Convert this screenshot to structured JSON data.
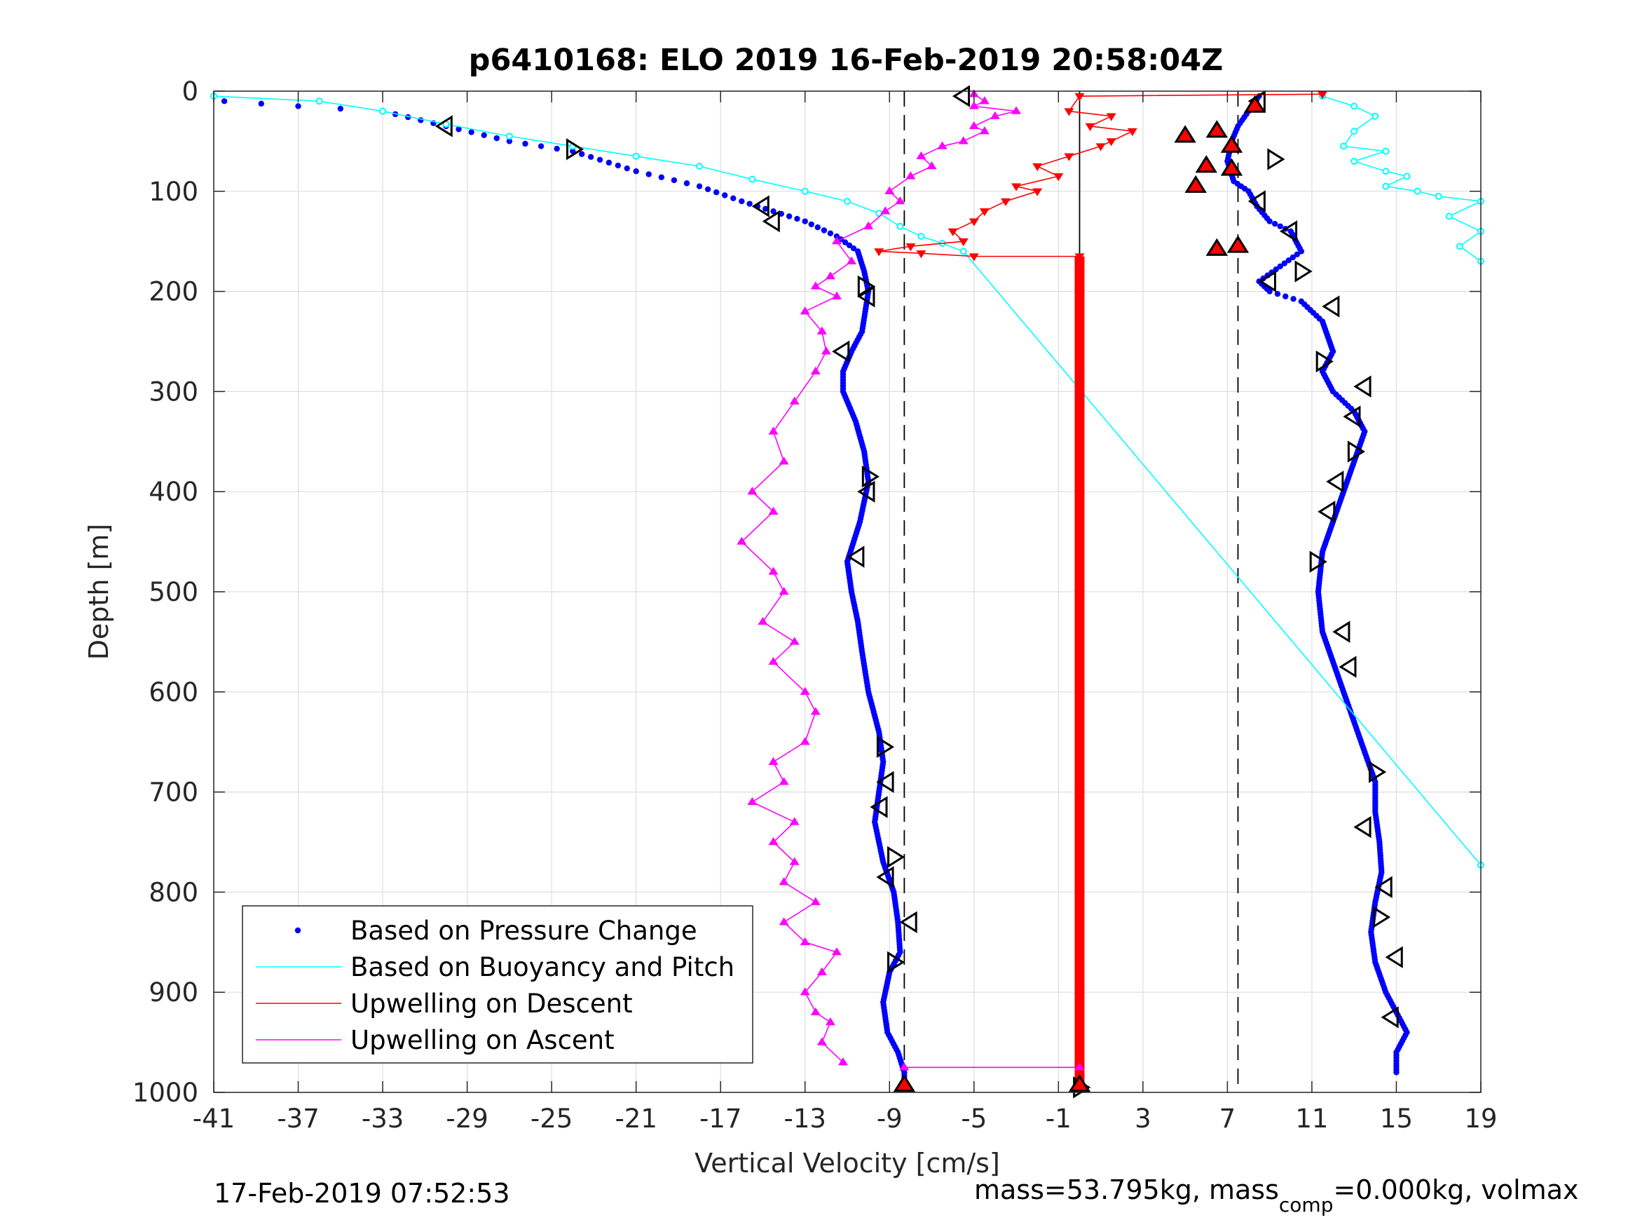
{
  "chart_data": {
    "type": "scatter",
    "title": "p6410168: ELO 2019 16-Feb-2019 20:58:04Z",
    "xlabel": "Vertical Velocity [cm/s]",
    "ylabel": "Depth [m]",
    "xlim": [
      -41,
      19
    ],
    "ylim": [
      0,
      1000
    ],
    "y_reversed": true,
    "grid": true,
    "legend_position": "bottom-left",
    "x_ticks": [
      "-41",
      "-37",
      "-33",
      "-29",
      "-25",
      "-21",
      "-17",
      "-13",
      "-9",
      "-5",
      "-1",
      "3",
      "7",
      "11",
      "15",
      "19"
    ],
    "y_ticks": [
      "0",
      "100",
      "200",
      "300",
      "400",
      "500",
      "600",
      "700",
      "800",
      "900",
      "1000"
    ],
    "reference_lines": {
      "dashed_x": [
        -8.3,
        7.5
      ],
      "solid_x": [
        0
      ]
    },
    "series": [
      {
        "name": "Based on Pressure Change",
        "style": "dots",
        "color": "#0000ff",
        "segments": [
          {
            "x": [
              -40.5,
              -37,
              -33,
              -30,
              -27,
              -24,
              -21,
              -18,
              -16,
              -14.5,
              -13,
              -11.5,
              -10.5,
              -10.2,
              -10,
              -10.3,
              -10.8,
              -11.2,
              -11.2,
              -10.6,
              -10.2,
              -10.0,
              -10.4,
              -11.0,
              -10.8,
              -10.5,
              -10.3,
              -10.0,
              -9.5,
              -9.3,
              -9.5,
              -9.7,
              -9.3,
              -8.8,
              -8.6,
              -8.5,
              -9.0,
              -9.3,
              -9.1,
              -8.6,
              -8.3,
              -8.3
            ],
            "y": [
              10,
              15,
              20,
              35,
              50,
              60,
              80,
              95,
              110,
              120,
              130,
              145,
              160,
              180,
              200,
              240,
              260,
              280,
              300,
              330,
              360,
              390,
              430,
              470,
              500,
              530,
              560,
              600,
              640,
              670,
              700,
              730,
              770,
              800,
              830,
              860,
              880,
              910,
              940,
              960,
              980,
              995
            ]
          },
          {
            "x": [
              8.5,
              8.0,
              7.5,
              7.2,
              7.0,
              7.3,
              8.0,
              8.4,
              9.0,
              10.0,
              10.5,
              9.5,
              8.5,
              9.0,
              10.5,
              11.5,
              12.0,
              11.5,
              12.0,
              13.0,
              13.5,
              13.0,
              12.5,
              12.0,
              11.5,
              11.3,
              11.5,
              12.0,
              12.5,
              13.0,
              13.5,
              14.0,
              14.0,
              14.2,
              14.3,
              14.0,
              13.8,
              14.0,
              14.5,
              15.0,
              15.5,
              15.0,
              15.0
            ],
            "y": [
              5,
              20,
              35,
              50,
              70,
              90,
              100,
              115,
              130,
              140,
              160,
              175,
              190,
              200,
              210,
              230,
              260,
              280,
              300,
              320,
              340,
              370,
              400,
              430,
              460,
              500,
              540,
              570,
              600,
              630,
              660,
              690,
              720,
              750,
              780,
              810,
              840,
              870,
              900,
              920,
              940,
              960,
              980
            ]
          }
        ]
      },
      {
        "name": "Based on Buoyancy and Pitch",
        "style": "line-with-circles",
        "color": "#00ffff",
        "segments": [
          {
            "x": [
              -41,
              -36,
              -33,
              -30,
              -27,
              -24,
              -21,
              -18,
              -15.5,
              -13,
              -11,
              -9.5,
              -8.5,
              -7.5,
              -6.5,
              -5.5
            ],
            "y": [
              5,
              10,
              20,
              33,
              45,
              55,
              65,
              75,
              88,
              100,
              110,
              122,
              135,
              145,
              152,
              160
            ]
          },
          {
            "x": [
              -5.5,
              19
            ],
            "y": [
              160,
              773
            ]
          },
          {
            "x": [
              11.5,
              13,
              14,
              13,
              12.5,
              14.5,
              13,
              14.5,
              15.5,
              14.5,
              16,
              17,
              19,
              17.5,
              19,
              18,
              19
            ],
            "y": [
              5,
              15,
              25,
              40,
              55,
              60,
              70,
              80,
              85,
              95,
              100,
              105,
              110,
              125,
              140,
              155,
              170
            ]
          }
        ]
      },
      {
        "name": "Upwelling on Descent",
        "style": "line-with-down-triangles",
        "color": "#ff0000",
        "segments": [
          {
            "x": [
              11.5,
              0,
              -0.5,
              1.5,
              0.5,
              2.5,
              1.5,
              1,
              -0.5,
              -2,
              -1,
              -3,
              -2,
              -3.5,
              -4.5,
              -5,
              -6,
              -5.5,
              -8,
              -9.5,
              -7.5,
              -5,
              0
            ],
            "y": [
              3,
              5,
              20,
              25,
              35,
              40,
              50,
              55,
              65,
              75,
              85,
              95,
              100,
              110,
              120,
              130,
              140,
              150,
              155,
              160,
              162,
              165,
              165
            ]
          },
          {
            "x": [
              0,
              0
            ],
            "y": [
              165,
              995
            ]
          }
        ]
      },
      {
        "name": "Upwelling on Ascent",
        "style": "line-with-up-triangles",
        "color": "#ff00ff",
        "segments": [
          {
            "x": [
              -11.2,
              -12.2,
              -11.8,
              -12.5,
              -13,
              -12.2,
              -11.5,
              -13,
              -14,
              -12.5,
              -14,
              -13.5,
              -14.5,
              -13.5,
              -15.5,
              -14,
              -14.5,
              -13,
              -12.5,
              -13,
              -14.5,
              -13.5,
              -15,
              -14,
              -14.5,
              -16,
              -14.5,
              -15.5,
              -14,
              -14.5,
              -13.5,
              -12.5,
              -12,
              -12.2
            ],
            "y": [
              970,
              950,
              930,
              920,
              900,
              880,
              860,
              850,
              830,
              810,
              790,
              770,
              750,
              730,
              710,
              690,
              670,
              650,
              620,
              600,
              570,
              550,
              530,
              500,
              480,
              450,
              420,
              400,
              370,
              340,
              310,
              280,
              260,
              240
            ]
          },
          {
            "x": [
              -12.2,
              -13,
              -11.5,
              -12.5,
              -11.8,
              -10.8,
              -11.5,
              -10,
              -9.2,
              -8.5,
              -9,
              -8,
              -7,
              -7.5,
              -6.5,
              -5.5,
              -4.5,
              -5,
              -4,
              -3,
              -5,
              -4.5,
              -5
            ],
            "y": [
              240,
              220,
              205,
              195,
              185,
              170,
              150,
              135,
              120,
              110,
              100,
              85,
              75,
              65,
              55,
              50,
              40,
              35,
              25,
              20,
              15,
              10,
              3
            ]
          },
          {
            "x": [
              -8.3,
              0
            ],
            "y": [
              975,
              975
            ]
          }
        ]
      }
    ],
    "markers_open_triangles": [
      {
        "x": -30,
        "y": 35
      },
      {
        "x": -24,
        "y": 58
      },
      {
        "x": -15,
        "y": 115
      },
      {
        "x": -14.5,
        "y": 130
      },
      {
        "x": -10.2,
        "y": 195
      },
      {
        "x": -10,
        "y": 205
      },
      {
        "x": -11.2,
        "y": 260
      },
      {
        "x": -10,
        "y": 385
      },
      {
        "x": -10,
        "y": 400
      },
      {
        "x": -10.5,
        "y": 465
      },
      {
        "x": -9.3,
        "y": 655
      },
      {
        "x": -9.1,
        "y": 690
      },
      {
        "x": -9.4,
        "y": 715
      },
      {
        "x": -8.8,
        "y": 765
      },
      {
        "x": -9.1,
        "y": 785
      },
      {
        "x": -8,
        "y": 830
      },
      {
        "x": -8.8,
        "y": 870
      },
      {
        "x": -5.5,
        "y": 5
      },
      {
        "x": 8.5,
        "y": 10
      },
      {
        "x": 9.2,
        "y": 68
      },
      {
        "x": 8.5,
        "y": 110
      },
      {
        "x": 10,
        "y": 140
      },
      {
        "x": 10.5,
        "y": 180
      },
      {
        "x": 9,
        "y": 190
      },
      {
        "x": 12,
        "y": 215
      },
      {
        "x": 11.5,
        "y": 270
      },
      {
        "x": 13.5,
        "y": 295
      },
      {
        "x": 13,
        "y": 325
      },
      {
        "x": 13,
        "y": 360
      },
      {
        "x": 12.2,
        "y": 390
      },
      {
        "x": 11.8,
        "y": 420
      },
      {
        "x": 11.2,
        "y": 470
      },
      {
        "x": 12.5,
        "y": 540
      },
      {
        "x": 12.8,
        "y": 575
      },
      {
        "x": 14,
        "y": 680
      },
      {
        "x": 13.5,
        "y": 735
      },
      {
        "x": 14.5,
        "y": 795
      },
      {
        "x": 14.2,
        "y": 825
      },
      {
        "x": 15,
        "y": 865
      },
      {
        "x": 14.8,
        "y": 925
      },
      {
        "x": 0,
        "y": 995
      }
    ],
    "markers_filled_red_triangles": [
      {
        "x": 5,
        "y": 45
      },
      {
        "x": 6.5,
        "y": 40
      },
      {
        "x": 7.2,
        "y": 55
      },
      {
        "x": 6,
        "y": 75
      },
      {
        "x": 7.2,
        "y": 78
      },
      {
        "x": 5.5,
        "y": 95
      },
      {
        "x": 6.5,
        "y": 158
      },
      {
        "x": 7.5,
        "y": 155
      },
      {
        "x": -8.3,
        "y": 993
      },
      {
        "x": 0,
        "y": 993
      },
      {
        "x": 8.3,
        "y": 15
      }
    ]
  },
  "footer": {
    "timestamp": "17-Feb-2019 07:52:53",
    "params_prefix": "mass=53.795kg, mass",
    "params_sub": "comp",
    "params_suffix": "=0.000kg, volmax"
  }
}
